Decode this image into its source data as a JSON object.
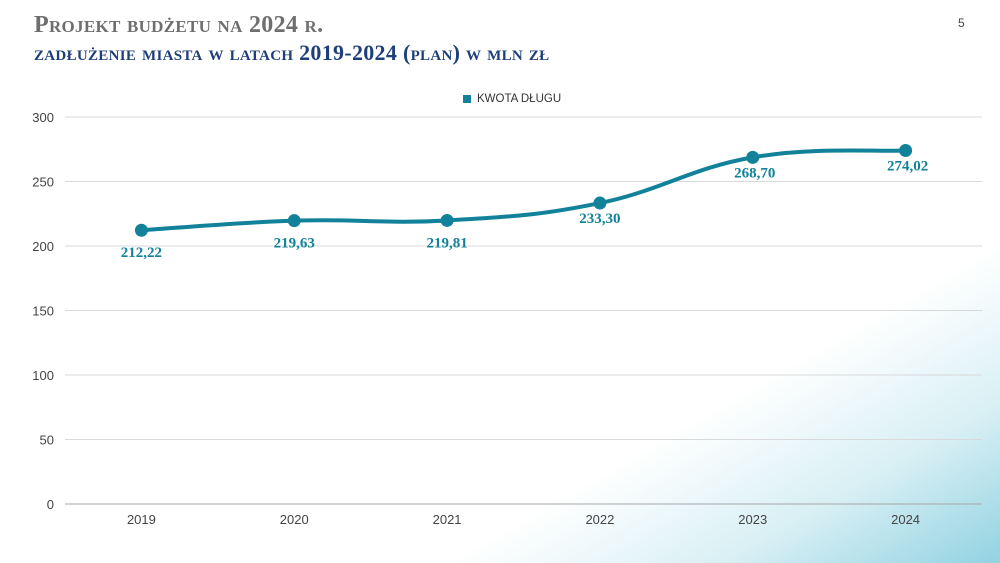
{
  "slide": {
    "title": "Projekt budżetu na 2024 r.",
    "subtitle": "Zadłużenie miasta w latach 2019-2024 (plan) w mln zł",
    "page_number": "5"
  },
  "colors": {
    "series": "#12829a",
    "title": "#6e6e6e",
    "subtitle": "#1f3f7a",
    "grid": "#d9d9d9"
  },
  "chart_data": {
    "type": "line",
    "title": "",
    "xlabel": "",
    "ylabel": "",
    "categories": [
      "2019",
      "2020",
      "2021",
      "2022",
      "2023",
      "2024"
    ],
    "series": [
      {
        "name": "KWOTA DŁUGU",
        "values": [
          212.22,
          219.63,
          219.81,
          233.3,
          268.7,
          274.02
        ],
        "labels": [
          "212,22",
          "219,63",
          "219,81",
          "233,30",
          "268,70",
          "274,02"
        ],
        "smooth": true,
        "markers": true
      }
    ],
    "ylim": [
      0,
      300
    ],
    "yticks": [
      0,
      50,
      100,
      150,
      200,
      250,
      300
    ],
    "grid": true,
    "legend": "top-center"
  }
}
